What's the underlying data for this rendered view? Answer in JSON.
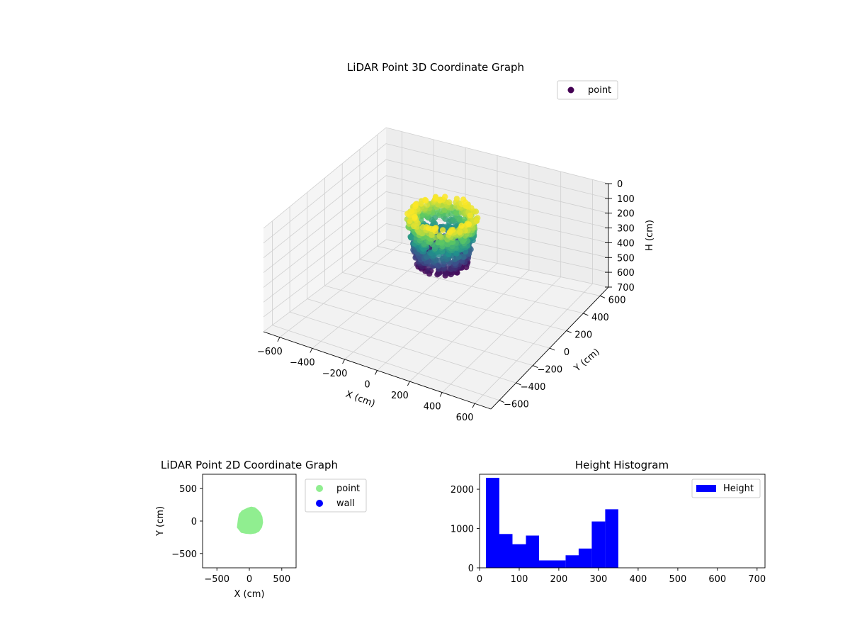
{
  "colors": {
    "pane_floor": "#f2f2f2",
    "pane_left": "#f5f5f5",
    "pane_right": "#ededed",
    "grid": "#cfcfcf",
    "viridis_dark": "#440154",
    "viridis_mid": "#21918c",
    "viridis_light": "#fde725",
    "point_2d": "#90ee90",
    "wall_2d": "#0000ff",
    "histogram": "#0000ff"
  },
  "chart_data": [
    {
      "type": "scatter",
      "projection": "3d",
      "title": "LiDAR Point 3D Coordinate Graph",
      "xlabel": "X (cm)",
      "ylabel": "Y (cm)",
      "zlabel": "H (cm)",
      "xlim": [
        -700,
        700
      ],
      "ylim": [
        -700,
        700
      ],
      "zlim": [
        0,
        700
      ],
      "z_inverted": true,
      "x_ticks": [
        "−600",
        "−400",
        "−200",
        "0",
        "200",
        "400",
        "600"
      ],
      "y_ticks": [
        "−600",
        "−400",
        "−200",
        "0",
        "200",
        "400",
        "600"
      ],
      "z_ticks": [
        "0",
        "100",
        "200",
        "300",
        "400",
        "500",
        "600",
        "700"
      ],
      "grid": true,
      "legend": {
        "placement": "top-right",
        "entries": [
          "point"
        ]
      },
      "series": [
        {
          "name": "point",
          "colormap": "viridis",
          "center": [
            20,
            20
          ],
          "radius_range": [
            100,
            200
          ],
          "height_range": [
            20,
            350
          ]
        }
      ]
    },
    {
      "type": "scatter",
      "title": "LiDAR Point 2D Coordinate Graph",
      "xlabel": "X (cm)",
      "ylabel": "Y (cm)",
      "xlim": [
        -720,
        720
      ],
      "ylim": [
        -720,
        720
      ],
      "x_ticks": [
        -500,
        0,
        500
      ],
      "y_ticks": [
        -500,
        0,
        500
      ],
      "legend": {
        "placement": "outside-right",
        "entries": [
          "point",
          "wall"
        ]
      },
      "series": [
        {
          "name": "point",
          "shape": "blob",
          "outline": [
            [
              -175,
              -95
            ],
            [
              -160,
              20
            ],
            [
              -145,
              100
            ],
            [
              -105,
              150
            ],
            [
              -60,
              170
            ],
            [
              -20,
              190
            ],
            [
              30,
              205
            ],
            [
              80,
              195
            ],
            [
              120,
              165
            ],
            [
              160,
              120
            ],
            [
              185,
              60
            ],
            [
              195,
              -20
            ],
            [
              180,
              -90
            ],
            [
              140,
              -150
            ],
            [
              90,
              -175
            ],
            [
              20,
              -185
            ],
            [
              -50,
              -180
            ],
            [
              -120,
              -165
            ]
          ]
        },
        {
          "name": "wall",
          "points": []
        }
      ]
    },
    {
      "type": "bar",
      "title": "Height Histogram",
      "xlabel": "",
      "ylabel": "",
      "xlim": [
        0,
        720
      ],
      "ylim": [
        0,
        2380
      ],
      "x_ticks": [
        0,
        100,
        200,
        300,
        400,
        500,
        600,
        700
      ],
      "y_ticks": [
        0,
        1000,
        2000
      ],
      "legend": {
        "placement": "top-right",
        "entries": [
          "Height"
        ]
      },
      "bins": [
        {
          "x0": 16,
          "x1": 50,
          "count": 2290
        },
        {
          "x0": 50,
          "x1": 83,
          "count": 860
        },
        {
          "x0": 83,
          "x1": 117,
          "count": 600
        },
        {
          "x0": 117,
          "x1": 150,
          "count": 820
        },
        {
          "x0": 150,
          "x1": 183,
          "count": 190
        },
        {
          "x0": 183,
          "x1": 217,
          "count": 190
        },
        {
          "x0": 217,
          "x1": 250,
          "count": 320
        },
        {
          "x0": 250,
          "x1": 283,
          "count": 490
        },
        {
          "x0": 283,
          "x1": 317,
          "count": 1180
        },
        {
          "x0": 317,
          "x1": 350,
          "count": 1490
        }
      ]
    }
  ]
}
